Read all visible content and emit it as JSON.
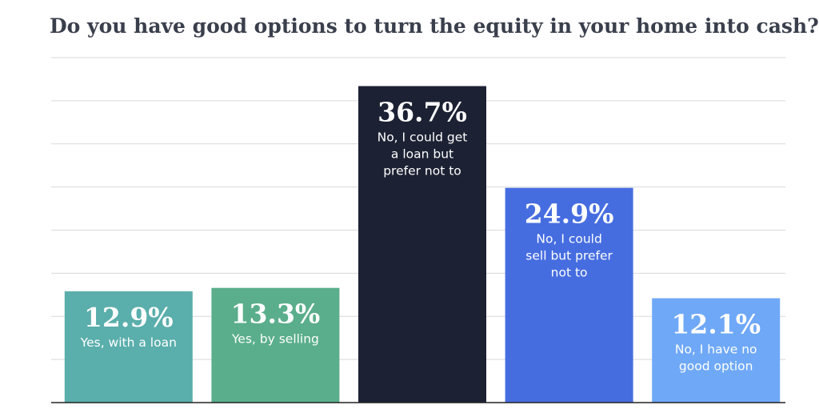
{
  "chart_data": {
    "type": "bar",
    "title": "Do you have good options to turn the equity in your home into cash?",
    "categories": [
      "Yes, with a loan",
      "Yes, by selling",
      "No, I could get a loan but prefer not to",
      "No, I could sell but prefer not to",
      "No, I have no good option"
    ],
    "values": [
      12.9,
      13.3,
      36.7,
      24.9,
      12.1
    ],
    "data_labels": [
      "12.9%",
      "13.3%",
      "36.7%",
      "24.9%",
      "12.1%"
    ],
    "label_lines": [
      [
        "Yes, with a loan"
      ],
      [
        "Yes, by selling"
      ],
      [
        "No, I could get",
        "a loan but",
        "prefer not to"
      ],
      [
        "No, I could",
        "sell but prefer",
        "not to"
      ],
      [
        "No, I have no",
        "good option"
      ]
    ],
    "colors": [
      "#5aaeab",
      "#5aae8b",
      "#1c2133",
      "#466de0",
      "#6fa8f7"
    ],
    "ylim": [
      0,
      40
    ],
    "grid": true,
    "xlabel": "",
    "ylabel": ""
  }
}
